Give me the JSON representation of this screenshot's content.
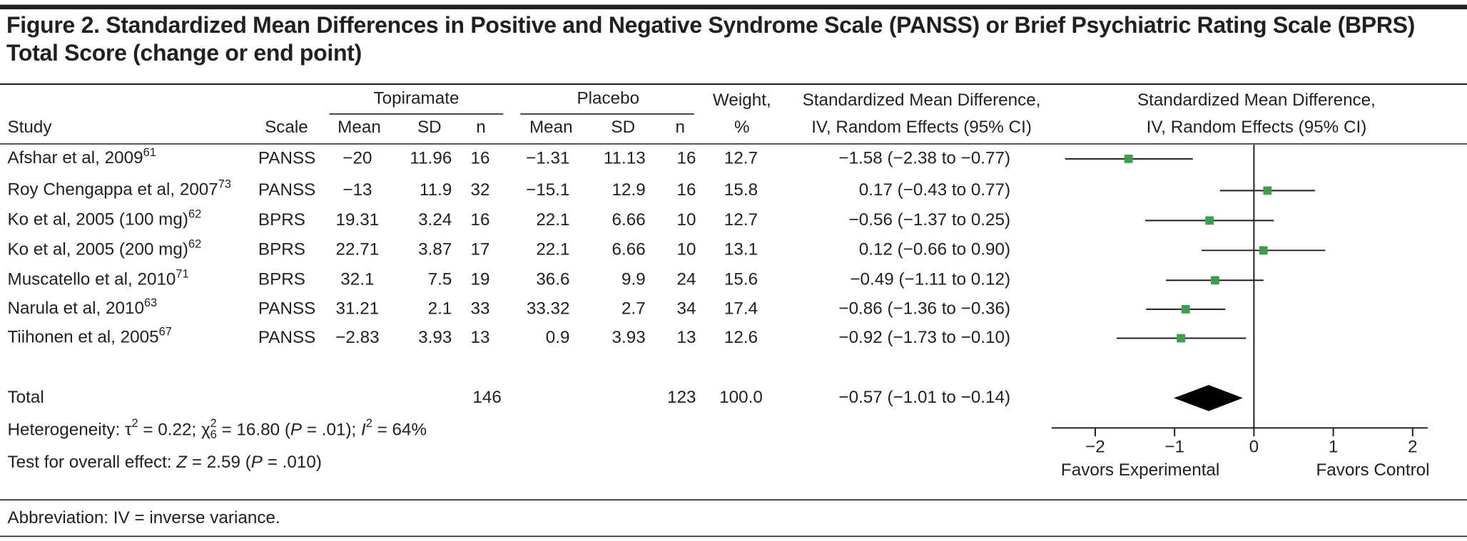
{
  "chart_data": {
    "type": "forest",
    "title": "Figure 2. Standardized Mean Differences in Positive and Negative Syndrome Scale (PANSS) or Brief Psychiatric Rating Scale (BPRS) Total Score (change or end point)",
    "groups": [
      "Topiramate",
      "Placebo"
    ],
    "columns": [
      "Study",
      "Scale",
      "Mean",
      "SD",
      "n",
      "Mean",
      "SD",
      "n"
    ],
    "weight_header": [
      "Weight,",
      "%"
    ],
    "effect_header": [
      "Standardized Mean Difference,",
      "IV, Random Effects (95% CI)"
    ],
    "studies": [
      {
        "name": "Afshar et al, 2009",
        "ref": "61",
        "scale": "PANSS",
        "cells": [
          "−20",
          "11.96",
          "16",
          "−1.31",
          "11.13",
          "16"
        ],
        "weight": "12.7",
        "smd": -1.58,
        "ci": [
          -2.38,
          -0.77
        ],
        "label": "−1.58 (−2.38 to −0.77)"
      },
      {
        "name": "Roy Chengappa et al, 2007",
        "ref": "73",
        "scale": "PANSS",
        "cells": [
          "−13",
          "11.9",
          "32",
          "−15.1",
          "12.9",
          "16"
        ],
        "weight": "15.8",
        "smd": 0.17,
        "ci": [
          -0.43,
          0.77
        ],
        "label": "0.17 (−0.43 to 0.77)"
      },
      {
        "name": "Ko et al, 2005 (100 mg)",
        "ref": "62",
        "scale": "BPRS",
        "cells": [
          "19.31",
          "3.24",
          "16",
          "22.1",
          "6.66",
          "10"
        ],
        "weight": "12.7",
        "smd": -0.56,
        "ci": [
          -1.37,
          0.25
        ],
        "label": "−0.56 (−1.37 to 0.25)"
      },
      {
        "name": "Ko et al, 2005 (200 mg)",
        "ref": "62",
        "scale": "BPRS",
        "cells": [
          "22.71",
          "3.87",
          "17",
          "22.1",
          "6.66",
          "10"
        ],
        "weight": "13.1",
        "smd": 0.12,
        "ci": [
          -0.66,
          0.9
        ],
        "label": "0.12 (−0.66 to 0.90)"
      },
      {
        "name": "Muscatello et al, 2010",
        "ref": "71",
        "scale": "BPRS",
        "cells": [
          "32.1",
          "7.5",
          "19",
          "36.6",
          "9.9",
          "24"
        ],
        "weight": "15.6",
        "smd": -0.49,
        "ci": [
          -1.11,
          0.12
        ],
        "label": "−0.49 (−1.11 to 0.12)"
      },
      {
        "name": "Narula et al, 2010",
        "ref": "63",
        "scale": "PANSS",
        "cells": [
          "31.21",
          "2.1",
          "33",
          "33.32",
          "2.7",
          "34"
        ],
        "weight": "17.4",
        "smd": -0.86,
        "ci": [
          -1.36,
          -0.36
        ],
        "label": "−0.86 (−1.36 to −0.36)"
      },
      {
        "name": "Tiihonen et al, 2005",
        "ref": "67",
        "scale": "PANSS",
        "cells": [
          "−2.83",
          "3.93",
          "13",
          "0.9",
          "3.93",
          "13"
        ],
        "weight": "12.6",
        "smd": -0.92,
        "ci": [
          -1.73,
          -0.1
        ],
        "label": "−0.92 (−1.73 to −0.10)"
      }
    ],
    "total": {
      "name": "Total",
      "n": [
        "146",
        "123"
      ],
      "weight": "100.0",
      "smd": -0.57,
      "ci": [
        -1.01,
        -0.14
      ],
      "label": "−0.57 (−1.01 to −0.14)"
    },
    "heterogeneity": [
      "Heterogeneity: τ",
      "2",
      " = 0.22; χ",
      "6",
      "2",
      " = 16.80 (",
      "P",
      " = .01); ",
      "I",
      "2",
      " = 64%"
    ],
    "overall_effect": [
      "Test for overall effect: ",
      "Z",
      " = 2.59 (",
      "P",
      " = .010)"
    ],
    "xlim": [
      -2.55,
      2.19
    ],
    "xticks": [
      {
        "value": -2,
        "label": "−2"
      },
      {
        "value": -1,
        "label": "−1"
      },
      0,
      1,
      2
    ],
    "null_line": 0,
    "xlabels": [
      "Favors Experimental",
      "Favors Control"
    ],
    "marker_color": "#3f9e4d"
  },
  "footnote": "Abbreviation: IV = inverse variance."
}
